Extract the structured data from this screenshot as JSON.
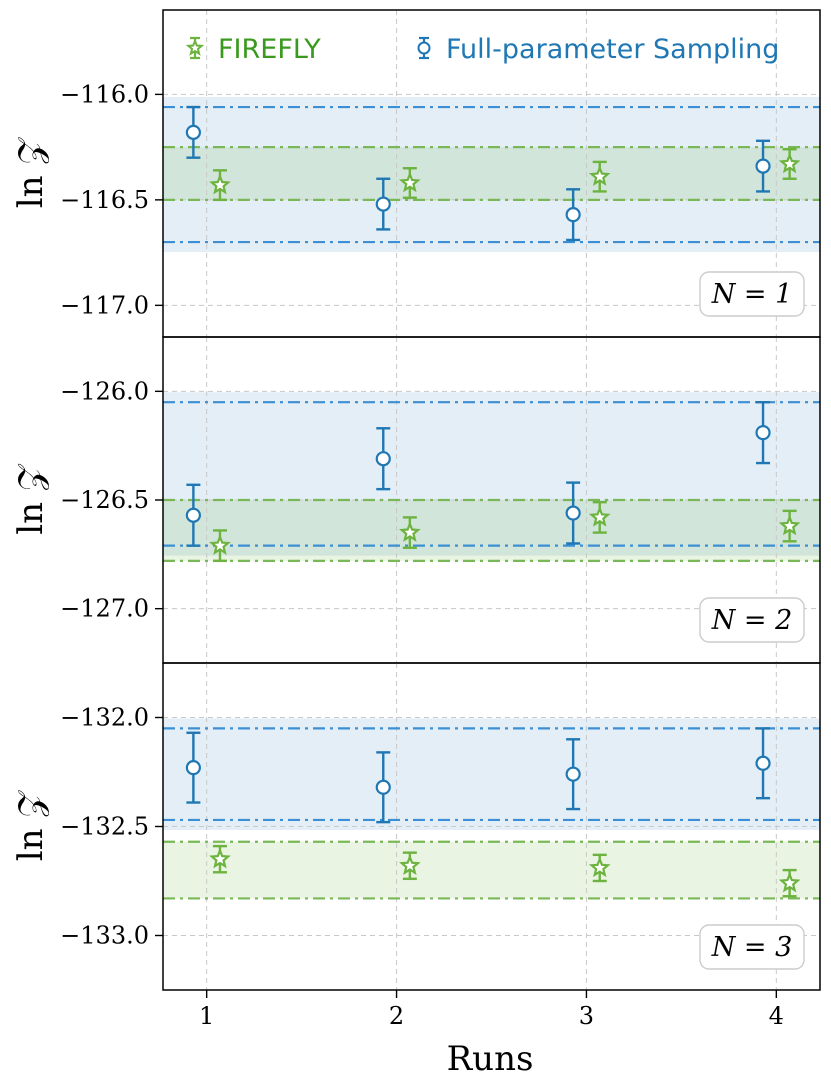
{
  "chart_data": {
    "type": "scatter",
    "xlabel": "Runs",
    "ylabel": "ln 𝒵",
    "x_ticks": [
      "1",
      "2",
      "3",
      "4"
    ],
    "xlim": [
      0.77,
      4.23
    ],
    "grid": true,
    "legend_placement": "top",
    "series_style": {
      "FIREFLY": {
        "color": "#6db33f",
        "marker": "star",
        "offset": 0.07
      },
      "Full": {
        "color": "#1f77b4",
        "marker": "circle",
        "offset": -0.07
      }
    },
    "legend": [
      {
        "key": "FIREFLY",
        "label": "FIREFLY",
        "text_color": "#3a9a1e",
        "marker": "star"
      },
      {
        "key": "Full",
        "label": "Full-parameter Sampling",
        "text_color": "#1f77b4",
        "marker": "circle"
      }
    ],
    "panels": [
      {
        "label": "N = 1",
        "ylim": [
          -117.15,
          -115.6
        ],
        "yticks": [
          -116.0,
          -116.5,
          -117.0
        ],
        "ytick_labels": [
          "−116.0",
          "−116.5",
          "−117.0"
        ],
        "full_band": [
          -116.7,
          -116.06
        ],
        "firefly_band": [
          -116.5,
          -116.25
        ],
        "series": [
          {
            "key": "FIREFLY",
            "name": "FIREFLY",
            "x": [
              1,
              2,
              3,
              4
            ],
            "y": [
              -116.43,
              -116.42,
              -116.39,
              -116.33
            ],
            "err": [
              0.07,
              0.07,
              0.07,
              0.07
            ]
          },
          {
            "key": "Full",
            "name": "Full-parameter Sampling",
            "x": [
              1,
              2,
              3,
              4
            ],
            "y": [
              -116.18,
              -116.52,
              -116.57,
              -116.34
            ],
            "err": [
              0.12,
              0.12,
              0.12,
              0.12
            ]
          }
        ]
      },
      {
        "label": "N = 2",
        "ylim": [
          -127.25,
          -125.75
        ],
        "yticks": [
          -126.0,
          -126.5,
          -127.0
        ],
        "ytick_labels": [
          "−126.0",
          "−126.5",
          "−127.0"
        ],
        "full_band": [
          -126.71,
          -126.05
        ],
        "firefly_band": [
          -126.78,
          -126.5
        ],
        "series": [
          {
            "key": "FIREFLY",
            "name": "FIREFLY",
            "x": [
              1,
              2,
              3,
              4
            ],
            "y": [
              -126.71,
              -126.65,
              -126.58,
              -126.62
            ],
            "err": [
              0.07,
              0.07,
              0.07,
              0.07
            ]
          },
          {
            "key": "Full",
            "name": "Full-parameter Sampling",
            "x": [
              1,
              2,
              3,
              4
            ],
            "y": [
              -126.57,
              -126.31,
              -126.56,
              -126.19
            ],
            "err": [
              0.14,
              0.14,
              0.14,
              0.14
            ]
          }
        ]
      },
      {
        "label": "N = 3",
        "ylim": [
          -133.25,
          -131.75
        ],
        "yticks": [
          -132.0,
          -132.5,
          -133.0
        ],
        "ytick_labels": [
          "−132.0",
          "−132.5",
          "−133.0"
        ],
        "full_band": [
          -132.47,
          -132.05
        ],
        "firefly_band": [
          -132.83,
          -132.57
        ],
        "series": [
          {
            "key": "FIREFLY",
            "name": "FIREFLY",
            "x": [
              1,
              2,
              3,
              4
            ],
            "y": [
              -132.65,
              -132.68,
              -132.69,
              -132.76
            ],
            "err": [
              0.06,
              0.06,
              0.06,
              0.06
            ]
          },
          {
            "key": "Full",
            "name": "Full-parameter Sampling",
            "x": [
              1,
              2,
              3,
              4
            ],
            "y": [
              -132.23,
              -132.32,
              -132.26,
              -132.21
            ],
            "err": [
              0.16,
              0.16,
              0.16,
              0.16
            ]
          }
        ]
      }
    ]
  }
}
